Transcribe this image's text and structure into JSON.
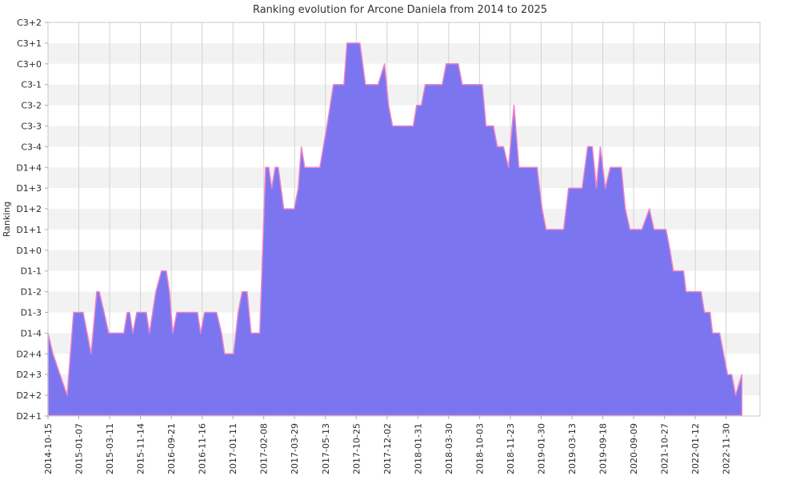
{
  "title": "Ranking evolution for Arcone Daniela from 2014 to 2025",
  "chart_data": {
    "type": "area",
    "title": "Ranking evolution for Arcone Daniela from 2014 to 2025",
    "xlabel": "",
    "ylabel": "Ranking",
    "legend": "none",
    "grid": "on",
    "y_ticks_top_to_bottom": [
      "C3+2",
      "C3+1",
      "C3+0",
      "C3-1",
      "C3-2",
      "C3-3",
      "C3-4",
      "D1+4",
      "D1+3",
      "D1+2",
      "D1+1",
      "D1+0",
      "D1-1",
      "D1-2",
      "D1-3",
      "D1-4",
      "D2+4",
      "D2+3",
      "D2+2",
      "D2+1"
    ],
    "rank_scale_bottom_to_top": [
      "D2+1",
      "D2+2",
      "D2+3",
      "D2+4",
      "D1-4",
      "D1-3",
      "D1-2",
      "D1-1",
      "D1+0",
      "D1+1",
      "D1+2",
      "D1+3",
      "D1+4",
      "C3-4",
      "C3-3",
      "C3-2",
      "C3-1",
      "C3+0",
      "C3+1",
      "C3+2"
    ],
    "x_ticks": [
      "2014-10-15",
      "2015-01-07",
      "2015-03-11",
      "2015-11-14",
      "2016-09-21",
      "2016-11-16",
      "2017-01-11",
      "2017-02-08",
      "2017-03-29",
      "2017-05-13",
      "2017-10-25",
      "2017-12-02",
      "2018-01-31",
      "2018-03-30",
      "2018-10-03",
      "2018-11-23",
      "2019-01-30",
      "2019-03-13",
      "2019-09-18",
      "2020-09-09",
      "2021-10-27",
      "2022-01-12",
      "2022-11-30"
    ],
    "x_range": [
      0,
      23.1
    ],
    "baseline_rank": 0,
    "series": [
      {
        "name": "ranking",
        "points": [
          [
            0.0,
            4
          ],
          [
            0.16,
            3
          ],
          [
            0.39,
            2
          ],
          [
            0.62,
            1
          ],
          [
            0.83,
            5
          ],
          [
            1.14,
            5
          ],
          [
            1.27,
            4
          ],
          [
            1.4,
            3
          ],
          [
            1.58,
            6
          ],
          [
            1.66,
            6
          ],
          [
            1.82,
            5
          ],
          [
            1.97,
            4
          ],
          [
            2.46,
            4
          ],
          [
            2.57,
            5
          ],
          [
            2.65,
            5
          ],
          [
            2.75,
            4
          ],
          [
            2.88,
            5
          ],
          [
            3.19,
            5
          ],
          [
            3.29,
            4
          ],
          [
            3.5,
            6
          ],
          [
            3.68,
            7
          ],
          [
            3.84,
            7
          ],
          [
            3.94,
            6
          ],
          [
            4.05,
            4
          ],
          [
            4.18,
            5
          ],
          [
            4.85,
            5
          ],
          [
            4.95,
            4
          ],
          [
            5.08,
            5
          ],
          [
            5.47,
            5
          ],
          [
            5.63,
            4
          ],
          [
            5.73,
            3
          ],
          [
            6.02,
            3
          ],
          [
            6.17,
            5
          ],
          [
            6.3,
            6
          ],
          [
            6.46,
            6
          ],
          [
            6.59,
            4
          ],
          [
            6.87,
            4
          ],
          [
            7.06,
            12
          ],
          [
            7.16,
            12
          ],
          [
            7.26,
            11
          ],
          [
            7.37,
            12
          ],
          [
            7.47,
            12
          ],
          [
            7.65,
            10
          ],
          [
            7.99,
            10
          ],
          [
            8.12,
            11
          ],
          [
            8.22,
            13
          ],
          [
            8.33,
            12
          ],
          [
            8.82,
            12
          ],
          [
            9.05,
            14
          ],
          [
            9.26,
            16
          ],
          [
            9.6,
            16
          ],
          [
            9.7,
            18
          ],
          [
            10.12,
            18
          ],
          [
            10.3,
            16
          ],
          [
            10.71,
            16
          ],
          [
            10.92,
            17
          ],
          [
            11.05,
            15
          ],
          [
            11.18,
            14
          ],
          [
            11.85,
            14
          ],
          [
            11.96,
            15
          ],
          [
            12.11,
            15
          ],
          [
            12.24,
            16
          ],
          [
            12.79,
            16
          ],
          [
            12.92,
            17
          ],
          [
            13.31,
            17
          ],
          [
            13.44,
            16
          ],
          [
            14.09,
            16
          ],
          [
            14.21,
            14
          ],
          [
            14.45,
            14
          ],
          [
            14.58,
            13
          ],
          [
            14.78,
            13
          ],
          [
            14.94,
            12
          ],
          [
            15.12,
            15
          ],
          [
            15.28,
            12
          ],
          [
            15.87,
            12
          ],
          [
            16.03,
            10
          ],
          [
            16.16,
            9
          ],
          [
            16.73,
            9
          ],
          [
            16.89,
            11
          ],
          [
            17.33,
            11
          ],
          [
            17.51,
            13
          ],
          [
            17.66,
            13
          ],
          [
            17.79,
            11
          ],
          [
            17.92,
            13
          ],
          [
            18.08,
            11
          ],
          [
            18.24,
            12
          ],
          [
            18.6,
            12
          ],
          [
            18.73,
            10
          ],
          [
            18.88,
            9
          ],
          [
            19.27,
            9
          ],
          [
            19.51,
            10
          ],
          [
            19.66,
            9
          ],
          [
            20.05,
            9
          ],
          [
            20.18,
            8
          ],
          [
            20.29,
            7
          ],
          [
            20.62,
            7
          ],
          [
            20.7,
            6
          ],
          [
            21.19,
            6
          ],
          [
            21.3,
            5
          ],
          [
            21.48,
            5
          ],
          [
            21.56,
            4
          ],
          [
            21.79,
            4
          ],
          [
            21.92,
            3
          ],
          [
            22.05,
            2
          ],
          [
            22.18,
            2
          ],
          [
            22.31,
            1
          ],
          [
            22.51,
            2
          ]
        ]
      }
    ],
    "colors": {
      "fill": "#7b76f0",
      "line": "#f082c8",
      "band_white": "#ffffff",
      "band_gray": "#f2f2f2",
      "grid": "#d2d2d2",
      "border": "#c8c8c8",
      "tick_mark": "#aaaaaa",
      "text": "#2b2b2b"
    }
  }
}
